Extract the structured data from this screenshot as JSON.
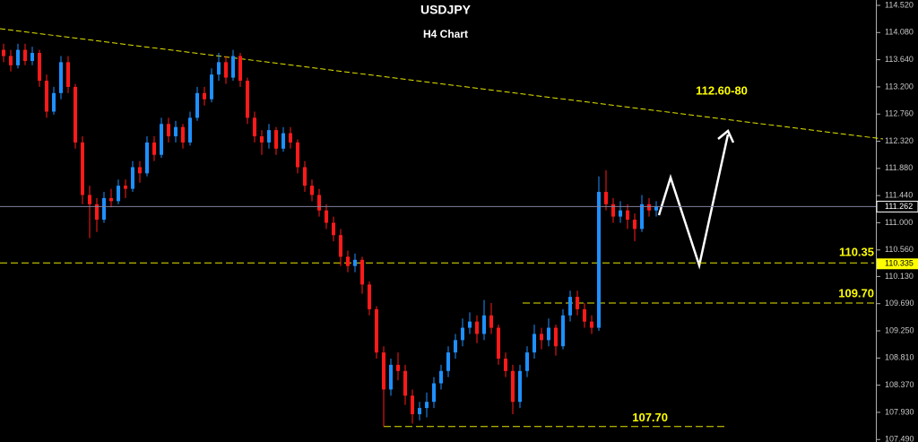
{
  "chart_data": {
    "type": "candlestick",
    "title": "USDJPY",
    "subtitle": "H4 Chart",
    "up_color": "#1e90ff",
    "down_color": "#ff1a1a",
    "ylim": [
      107.45,
      114.607
    ],
    "yticks": [
      {
        "value": 114.52,
        "label": "114.520"
      },
      {
        "value": 114.08,
        "label": "114.080"
      },
      {
        "value": 113.64,
        "label": "113.640"
      },
      {
        "value": 113.2,
        "label": "113.200"
      },
      {
        "value": 112.76,
        "label": "112.760"
      },
      {
        "value": 112.32,
        "label": "112.320"
      },
      {
        "value": 111.88,
        "label": "111.880"
      },
      {
        "value": 111.44,
        "label": "111.440"
      },
      {
        "value": 111,
        "label": "111.000"
      },
      {
        "value": 110.56,
        "label": "110.560"
      },
      {
        "value": 110.13,
        "label": "110.130"
      },
      {
        "value": 109.69,
        "label": "109.690"
      },
      {
        "value": 109.25,
        "label": "109.250"
      },
      {
        "value": 108.81,
        "label": "108.810"
      },
      {
        "value": 108.37,
        "label": "108.370"
      },
      {
        "value": 107.93,
        "label": "107.930"
      },
      {
        "value": 107.49,
        "label": "107.490"
      }
    ],
    "price_markers": [
      {
        "value": 111.262,
        "label": "111.262"
      },
      {
        "value": 110.335,
        "label": "110.335"
      }
    ],
    "levels": [
      {
        "value": 110.35,
        "label": "110.35"
      },
      {
        "value": 109.7,
        "label": "109.70"
      },
      {
        "value": 107.7,
        "label": "107.70"
      }
    ],
    "target_label": "112.60-80",
    "open": [
      113.8,
      113.7,
      113.55,
      113.8,
      113.62,
      113.75,
      113.3,
      112.8,
      113.1,
      113.6,
      113.2,
      112.3,
      111.45,
      111.3,
      111.05,
      111.4,
      111.35,
      111.6,
      111.55,
      111.9,
      111.8,
      112.3,
      112.1,
      112.6,
      112.4,
      112.55,
      112.3,
      112.7,
      113.1,
      113.0,
      113.4,
      113.6,
      113.35,
      113.7,
      113.3,
      112.7,
      112.4,
      112.3,
      112.5,
      112.2,
      112.45,
      112.3,
      111.9,
      111.6,
      111.45,
      111.2,
      111.0,
      110.8,
      110.45,
      110.3,
      110.4,
      110.0,
      109.6,
      108.9,
      108.3,
      108.7,
      108.6,
      108.2,
      107.9,
      108.0,
      108.1,
      108.4,
      108.6,
      108.9,
      109.1,
      109.3,
      109.4,
      109.2,
      109.5,
      109.3,
      108.8,
      108.6,
      108.1,
      108.6,
      108.9,
      109.2,
      109.1,
      109.3,
      109.0,
      109.5,
      109.8,
      109.6,
      109.4,
      109.3,
      111.5,
      111.3,
      111.1,
      111.2,
      111.05,
      110.9,
      111.3,
      111.2
    ],
    "high": [
      113.9,
      113.8,
      113.9,
      113.9,
      113.85,
      113.8,
      113.4,
      113.2,
      113.7,
      113.7,
      113.25,
      112.4,
      111.6,
      111.4,
      111.5,
      111.55,
      111.7,
      111.7,
      112.0,
      112.0,
      112.4,
      112.4,
      112.7,
      112.7,
      112.65,
      112.6,
      112.8,
      113.2,
      113.2,
      113.5,
      113.75,
      113.7,
      113.8,
      113.75,
      113.35,
      112.8,
      112.5,
      112.6,
      112.55,
      112.55,
      112.55,
      112.35,
      112.0,
      111.7,
      111.55,
      111.3,
      111.1,
      110.9,
      110.55,
      110.5,
      110.45,
      110.05,
      109.65,
      109.0,
      108.8,
      108.9,
      108.7,
      108.3,
      108.1,
      108.25,
      108.5,
      108.7,
      109.0,
      109.2,
      109.45,
      109.55,
      109.5,
      109.75,
      109.7,
      109.35,
      108.9,
      108.7,
      108.7,
      109.0,
      109.35,
      109.3,
      109.45,
      109.35,
      109.6,
      109.9,
      109.9,
      109.7,
      109.5,
      111.75,
      111.85,
      111.4,
      111.35,
      111.3,
      111.15,
      111.45,
      111.4,
      111.35
    ],
    "low": [
      113.6,
      113.45,
      113.5,
      113.55,
      113.55,
      113.2,
      112.7,
      112.75,
      113.0,
      113.1,
      112.2,
      111.3,
      110.75,
      110.85,
      111.0,
      111.25,
      111.3,
      111.4,
      111.5,
      111.65,
      111.75,
      112.0,
      112.05,
      112.3,
      112.3,
      112.2,
      112.25,
      112.65,
      112.9,
      112.95,
      113.3,
      113.25,
      113.3,
      113.2,
      112.6,
      112.3,
      112.1,
      112.2,
      112.1,
      112.15,
      112.2,
      111.8,
      111.5,
      111.35,
      111.1,
      110.9,
      110.7,
      110.3,
      110.2,
      110.2,
      109.85,
      109.5,
      108.8,
      107.7,
      108.2,
      108.45,
      108.05,
      107.75,
      107.8,
      107.85,
      108.0,
      108.3,
      108.5,
      108.8,
      109.0,
      109.2,
      109.05,
      109.1,
      109.2,
      108.7,
      108.5,
      107.9,
      108.0,
      108.5,
      108.8,
      108.95,
      109.0,
      108.85,
      108.95,
      109.4,
      109.5,
      109.3,
      109.2,
      109.25,
      111.2,
      111.0,
      111.0,
      110.9,
      110.7,
      110.85,
      111.1,
      111.1
    ],
    "close": [
      113.7,
      113.55,
      113.8,
      113.62,
      113.75,
      113.3,
      112.8,
      113.1,
      113.6,
      113.2,
      112.3,
      111.45,
      111.3,
      111.05,
      111.4,
      111.35,
      111.6,
      111.55,
      111.9,
      111.8,
      112.3,
      112.1,
      112.6,
      112.4,
      112.55,
      112.3,
      112.7,
      113.1,
      113.0,
      113.4,
      113.6,
      113.35,
      113.7,
      113.3,
      112.7,
      112.4,
      112.3,
      112.5,
      112.2,
      112.45,
      112.3,
      111.9,
      111.6,
      111.45,
      111.2,
      111.0,
      110.8,
      110.45,
      110.3,
      110.4,
      110.0,
      109.6,
      108.9,
      108.3,
      108.7,
      108.6,
      108.2,
      107.9,
      108.0,
      108.1,
      108.4,
      108.6,
      108.9,
      109.1,
      109.3,
      109.4,
      109.2,
      109.5,
      109.3,
      108.8,
      108.6,
      108.1,
      108.6,
      108.9,
      109.2,
      109.1,
      109.3,
      109.0,
      109.5,
      109.8,
      109.6,
      109.4,
      109.3,
      111.5,
      111.3,
      111.1,
      111.2,
      111.05,
      110.9,
      111.3,
      111.2,
      111.26
    ]
  }
}
